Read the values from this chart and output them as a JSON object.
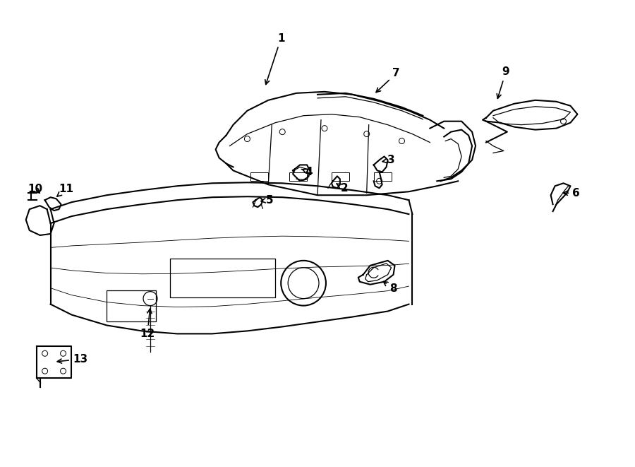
{
  "bg_color": "#ffffff",
  "line_color": "#000000",
  "figsize": [
    9.0,
    6.61
  ],
  "dpi": 100,
  "label_positions": {
    "1": [
      3.98,
      6.08,
      3.75,
      5.38
    ],
    "2": [
      4.88,
      3.95,
      4.76,
      4.02
    ],
    "3": [
      5.55,
      4.35,
      5.38,
      4.32
    ],
    "4": [
      4.38,
      4.18,
      4.27,
      4.22
    ],
    "5": [
      3.82,
      3.78,
      3.65,
      3.76
    ],
    "6": [
      8.18,
      3.88,
      7.95,
      3.88
    ],
    "7": [
      5.62,
      5.58,
      5.3,
      5.28
    ],
    "8": [
      5.58,
      2.52,
      5.4,
      2.65
    ],
    "9": [
      7.18,
      5.6,
      7.05,
      5.18
    ],
    "10": [
      0.48,
      3.94,
      0.58,
      3.85
    ],
    "11": [
      0.92,
      3.94,
      0.78,
      3.82
    ],
    "12": [
      2.08,
      1.88,
      2.12,
      2.28
    ],
    "13": [
      1.12,
      1.52,
      0.75,
      1.48
    ]
  }
}
